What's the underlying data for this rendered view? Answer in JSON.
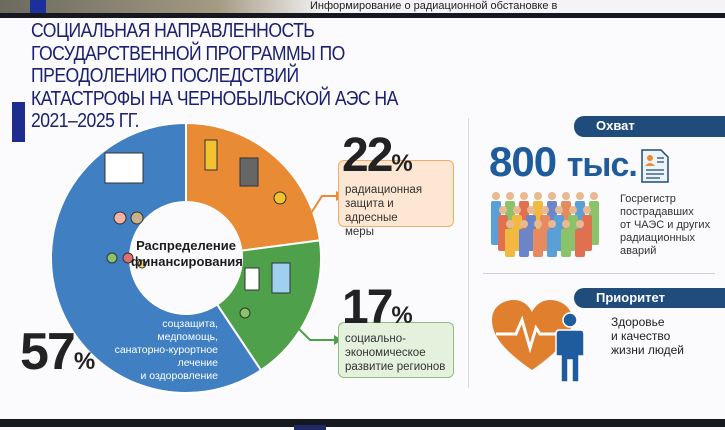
{
  "top_strip": {
    "text": "Информирование о радиационной обстановке в"
  },
  "title": [
    "СОЦИАЛЬНАЯ НАПРАВЛЕННОСТЬ",
    "ГОСУДАРСТВЕННОЙ ПРОГРАММЫ ПО",
    "ПРЕОДОЛЕНИЮ ПОСЛЕДСТВИЙ",
    "КАТАСТРОФЫ НА ЧЕРНОБЫЛЬСКОЙ АЭС НА",
    "2021–2025 ГГ."
  ],
  "chart_data": {
    "type": "pie",
    "title": "Распределение финансирования",
    "title_lines": [
      "Распределение",
      "финансирования"
    ],
    "slices": [
      {
        "label": "радиационная защита и адресные меры",
        "value": 22,
        "display": "22",
        "color": "#e98a34"
      },
      {
        "label": "социально-экономическое развитие регионов",
        "value": 17,
        "display": "17",
        "color": "#4ea04a"
      },
      {
        "label": "соцзащита, медпомощь, санаторно-курортное лечение и оздоровление",
        "value": 57,
        "display": "57",
        "color": "#3f7fc2"
      }
    ],
    "percent_sign": "%",
    "label_lines": {
      "protection": [
        "радиационная",
        "защита и адресные",
        "меры"
      ],
      "regions": [
        "социально-",
        "экономическое",
        "развитие регионов"
      ],
      "social": [
        "соцзащита,",
        "медпомощь,",
        "санаторно-курортное",
        "лечение",
        "и оздоровление"
      ]
    }
  },
  "coverage": {
    "label": "Охват",
    "number": "800",
    "unit": "тыс.",
    "description": [
      "Госрегистр",
      "пострадавших",
      "от ЧАЭС и других",
      "радиационных",
      "аварий"
    ],
    "icons": [
      "document-icon",
      "crowd-icon"
    ]
  },
  "priority": {
    "label": "Приоритет",
    "description": [
      "Здоровье",
      "и качество",
      "жизни людей"
    ],
    "icons": [
      "heart-pulse-icon",
      "person-icon"
    ]
  },
  "colors": {
    "navy": "#1b2070",
    "accent_blue": "#1f5c9e",
    "pill": "#1f4c7b"
  }
}
